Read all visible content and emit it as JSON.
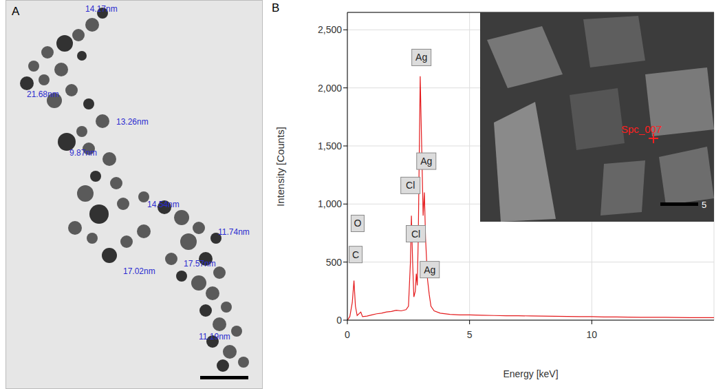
{
  "panel_A": {
    "label": "A",
    "particle_labels": [
      "14.17nm",
      "21.68nm",
      "13.26nm",
      "9.87nm",
      "14.54nm",
      "11.74nm",
      "17.02nm",
      "17.57nm",
      "11.19nm"
    ]
  },
  "chart_data": {
    "panel_label": "B",
    "type": "line",
    "x": [
      0,
      0.1,
      0.2,
      0.27,
      0.33,
      0.4,
      0.5,
      0.55,
      0.62,
      0.8,
      1.0,
      1.2,
      1.4,
      1.6,
      1.8,
      2.0,
      2.2,
      2.4,
      2.5,
      2.58,
      2.62,
      2.67,
      2.72,
      2.78,
      2.82,
      2.86,
      2.9,
      2.98,
      3.03,
      3.1,
      3.15,
      3.2,
      3.28,
      3.35,
      3.42,
      3.55,
      3.8,
      4.2,
      4.6,
      5.0,
      5.5,
      6.0,
      6.5,
      7.0,
      7.5,
      8.0,
      8.5,
      9.0,
      9.5,
      10.0,
      10.5,
      11.0,
      11.5,
      12.0,
      12.5,
      13.0,
      13.5,
      14.0,
      14.5,
      15.0
    ],
    "values": [
      0,
      30,
      150,
      340,
      120,
      40,
      60,
      70,
      30,
      35,
      45,
      55,
      60,
      70,
      75,
      85,
      80,
      90,
      120,
      500,
      900,
      500,
      200,
      250,
      400,
      300,
      700,
      2100,
      1600,
      900,
      1100,
      700,
      350,
      220,
      120,
      80,
      60,
      50,
      45,
      45,
      42,
      40,
      38,
      38,
      36,
      35,
      33,
      32,
      30,
      30,
      28,
      27,
      26,
      25,
      25,
      24,
      23,
      22,
      22,
      21
    ],
    "color": "#e41a1c",
    "xlabel": "Energy [keV]",
    "ylabel": "Intensity [Counts]",
    "xlim": [
      0,
      15
    ],
    "ylim": [
      0,
      2650
    ],
    "xticks": [
      0,
      5,
      10
    ],
    "yticks": [
      0,
      500,
      {
        "value": 1000,
        "label": "1,000"
      },
      {
        "value": 1500,
        "label": "1,500"
      },
      {
        "value": 2000,
        "label": "2,000"
      },
      {
        "value": 2500,
        "label": "2,500"
      }
    ],
    "grid": true,
    "annotations": [
      {
        "text": "C",
        "x": 0.34,
        "y": 565
      },
      {
        "text": "O",
        "x": 0.42,
        "y": 833
      },
      {
        "text": "Cl",
        "x": 2.58,
        "y": 1160
      },
      {
        "text": "Cl",
        "x": 2.8,
        "y": 744
      },
      {
        "text": "Ag",
        "x": 3.03,
        "y": 2262
      },
      {
        "text": "Ag",
        "x": 3.23,
        "y": 1369
      },
      {
        "text": "Ag",
        "x": 3.37,
        "y": 435
      }
    ],
    "inset": {
      "marker_label": "Spc_007",
      "scale_label": "5"
    }
  }
}
